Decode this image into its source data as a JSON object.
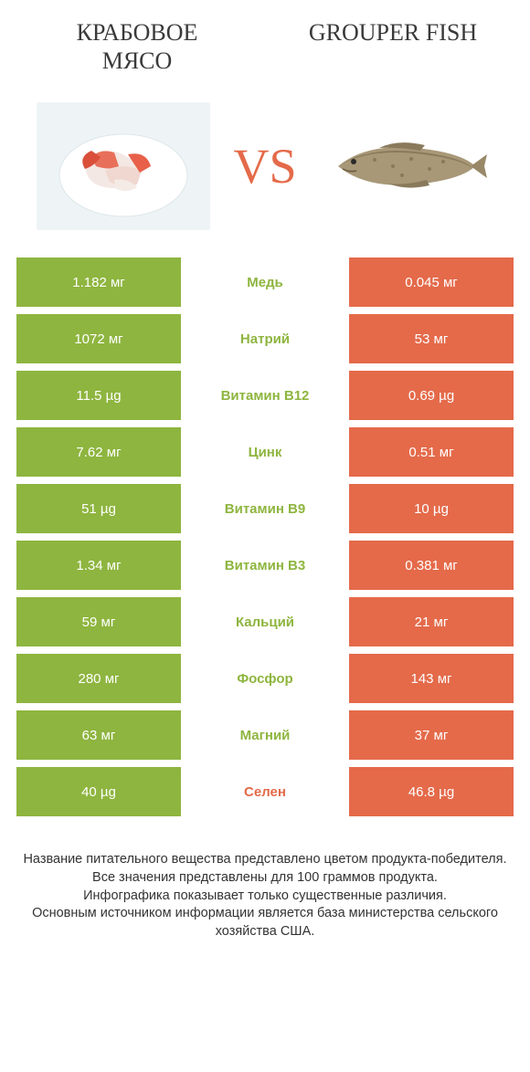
{
  "colors": {
    "green": "#8eb53f",
    "orange": "#e46a4a",
    "text": "#3a3a3a",
    "white": "#ffffff"
  },
  "header": {
    "left_title": "КРАБОВОЕ МЯСО",
    "right_title": "GROUPER FISH",
    "vs": "VS"
  },
  "rows": [
    {
      "left": "1.182 мг",
      "mid": "Медь",
      "right": "0.045 мг",
      "winner": "left"
    },
    {
      "left": "1072 мг",
      "mid": "Натрий",
      "right": "53 мг",
      "winner": "left"
    },
    {
      "left": "11.5 µg",
      "mid": "Витамин B12",
      "right": "0.69 µg",
      "winner": "left"
    },
    {
      "left": "7.62 мг",
      "mid": "Цинк",
      "right": "0.51 мг",
      "winner": "left"
    },
    {
      "left": "51 µg",
      "mid": "Витамин B9",
      "right": "10 µg",
      "winner": "left"
    },
    {
      "left": "1.34 мг",
      "mid": "Витамин B3",
      "right": "0.381 мг",
      "winner": "left"
    },
    {
      "left": "59 мг",
      "mid": "Кальций",
      "right": "21 мг",
      "winner": "left"
    },
    {
      "left": "280 мг",
      "mid": "Фосфор",
      "right": "143 мг",
      "winner": "left"
    },
    {
      "left": "63 мг",
      "mid": "Магний",
      "right": "37 мг",
      "winner": "left"
    },
    {
      "left": "40 µg",
      "mid": "Селен",
      "right": "46.8 µg",
      "winner": "right"
    }
  ],
  "footer": {
    "line1": "Название питательного вещества представлено цветом продукта-победителя.",
    "line2": "Все значения представлены для 100 граммов продукта.",
    "line3": "Инфографика показывает только существенные различия.",
    "line4": "Основным источником информации является база министерства сельского хозяйства США."
  }
}
